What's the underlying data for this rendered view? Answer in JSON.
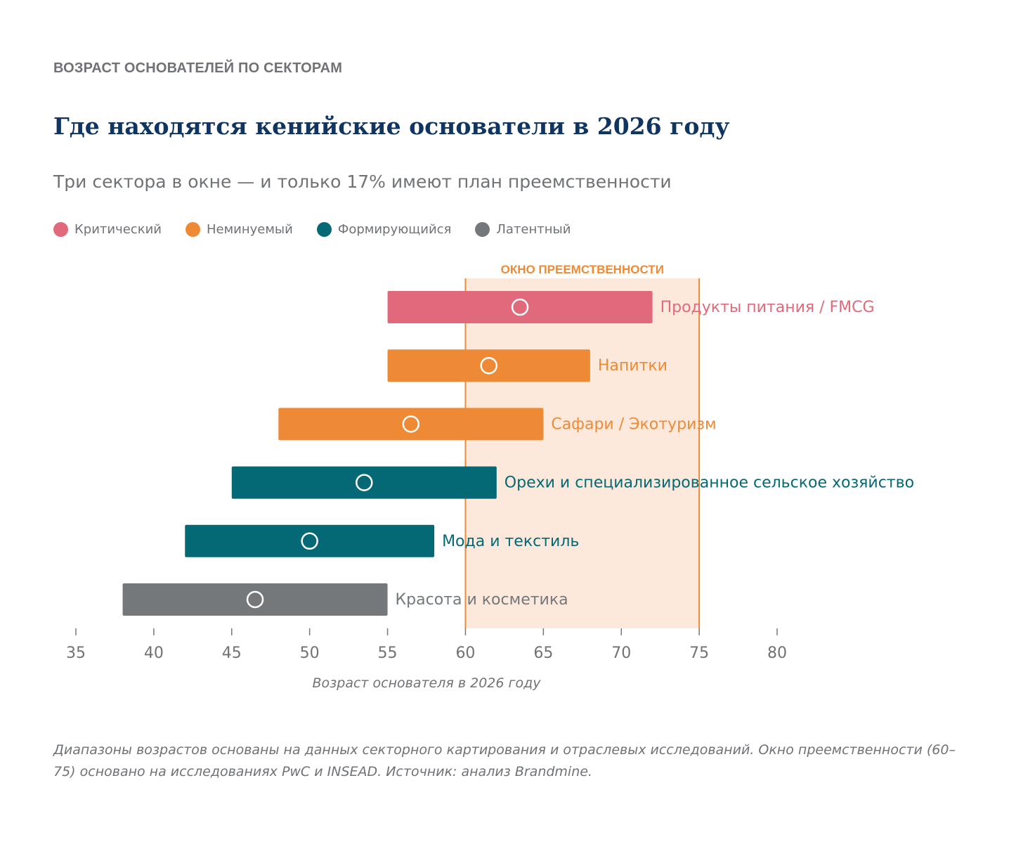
{
  "eyebrow": "ВОЗРАСТ ОСНОВАТЕЛЕЙ ПО СЕКТОРАМ",
  "title": "Где находятся кенийские основатели в 2026 году",
  "subtitle": "Три сектора в окне — и только 17% имеют план преемственности",
  "legend": [
    {
      "label": "Критический",
      "color": "#e06a7c"
    },
    {
      "label": "Неминуемый",
      "color": "#ee8a35"
    },
    {
      "label": "Формирующийся",
      "color": "#056875"
    },
    {
      "label": "Латентный",
      "color": "#74787b"
    }
  ],
  "footnote": "Диапазоны возрастов основаны на данных секторного картирования и отраслевых исследований. Окно преемственности (60–75) основано на исследованиях PwC и INSEAD. Источник: анализ Brandmine.",
  "chart_data": {
    "type": "bar",
    "orientation": "horizontal-range",
    "xlabel": "Возраст основателя в 2026 году",
    "xlim": [
      35,
      80
    ],
    "xticks": [
      35,
      40,
      45,
      50,
      55,
      60,
      65,
      70,
      75,
      80
    ],
    "window": {
      "label": "ОКНО ПРЕЕМСТВЕННОСТИ",
      "from": 60,
      "to": 75,
      "color": "#ee8a35",
      "fill": "#fde9dc"
    },
    "series": [
      {
        "name": "Продукты питания / FMCG",
        "category": "Критический",
        "min": 55,
        "max": 72,
        "marker": 63.5,
        "color": "#e06a7c"
      },
      {
        "name": "Напитки",
        "category": "Неминуемый",
        "min": 55,
        "max": 68,
        "marker": 61.5,
        "color": "#ee8a35"
      },
      {
        "name": "Сафари / Экотуризм",
        "category": "Неминуемый",
        "min": 48,
        "max": 65,
        "marker": 56.5,
        "color": "#ee8a35"
      },
      {
        "name": "Орехи и специализированное сельское хозяйство",
        "category": "Формирующийся",
        "min": 45,
        "max": 62,
        "marker": 53.5,
        "color": "#056875"
      },
      {
        "name": "Мода и текстиль",
        "category": "Формирующийся",
        "min": 42,
        "max": 58,
        "marker": 50,
        "color": "#056875"
      },
      {
        "name": "Красота и косметика",
        "category": "Латентный",
        "min": 38,
        "max": 55,
        "marker": 46.5,
        "color": "#74787b"
      }
    ]
  }
}
